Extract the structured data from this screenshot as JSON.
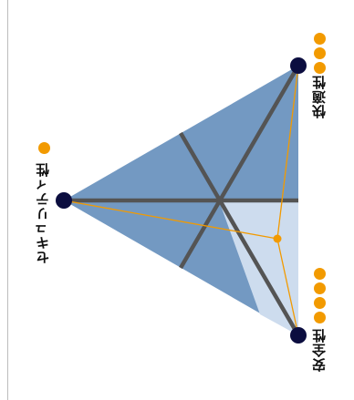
{
  "colors": {
    "triangle_fill": "#7399c2",
    "region_fill": "#cddcee",
    "axis": "#545454",
    "vertex": "#0b0d3f",
    "orange": "#f29a00",
    "frame": "#bdbdbd"
  },
  "vertices": {
    "security": {
      "label": "セキュリティ性",
      "score": 1
    },
    "comfort": {
      "label": "快適性",
      "score": 3
    },
    "safety": {
      "label": "安全性",
      "score": 4
    }
  }
}
